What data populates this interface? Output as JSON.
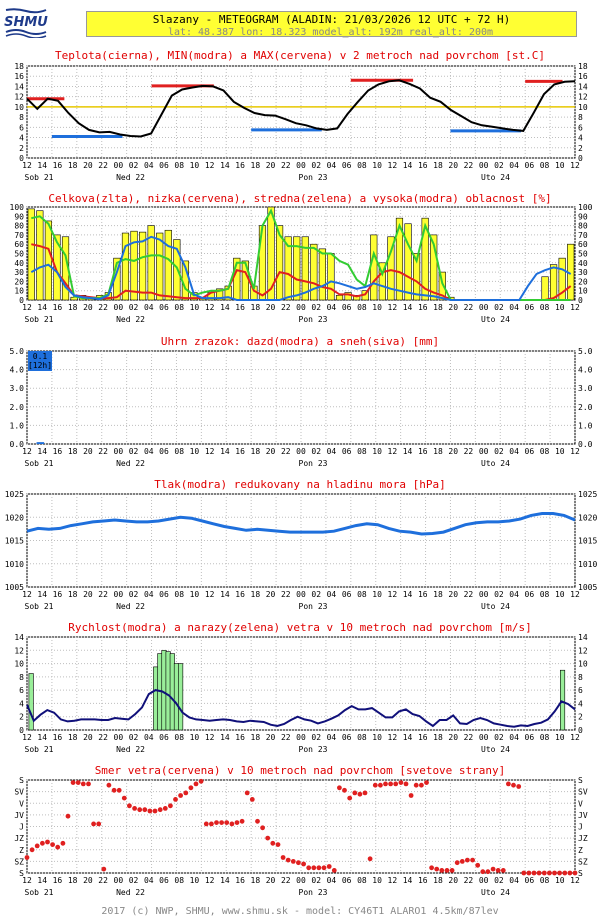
{
  "header": {
    "logo_text": "SHMU",
    "title": "Slazany - METEOGRAM (ALADIN: 21/03/2026 12 UTC + 72 H)",
    "subtitle": "lat: 48.387   lon: 18.323   model_alt: 192m   real_alt: 200m"
  },
  "time_axis": {
    "hour_labels": [
      "12",
      "14",
      "16",
      "18",
      "20",
      "22",
      "00",
      "02",
      "04",
      "06",
      "08",
      "10",
      "12",
      "14",
      "16",
      "18",
      "20",
      "22",
      "00",
      "02",
      "04",
      "06",
      "08",
      "10",
      "12",
      "14",
      "16",
      "18",
      "20",
      "22",
      "00",
      "02",
      "04",
      "06",
      "08",
      "10",
      "12"
    ],
    "day_labels": [
      "Sob 21",
      "Ned 22",
      "Pon 23",
      "Uto 24"
    ]
  },
  "colors": {
    "temp": "#000000",
    "min": "#1e6fdc",
    "max": "#e02020",
    "ref": "#e8c800",
    "cloud_total": "#ffff33",
    "cloud_low": "#e02020",
    "cloud_mid": "#33cc33",
    "cloud_high": "#1e6fdc",
    "precip": "#1e6fdc",
    "pressure": "#1e6fdc",
    "wind": "#10107a",
    "gust": "#99ee99",
    "dir": "#e02020"
  },
  "footer": "2017 (c) NWP, SHMU, www.shmu.sk - model: CY46T1 ALARO1 4.5km/87lev",
  "chart_data": [
    {
      "type": "line",
      "title": "Teplota(cierna), MIN(modra) a MAX(cervena) v 2 metroch nad povrchom [st.C]",
      "ylim": [
        0,
        18
      ],
      "yticks": [
        0,
        2,
        4,
        6,
        8,
        10,
        12,
        14,
        16,
        18
      ],
      "reference_line": 10,
      "series": [
        {
          "name": "Teplota",
          "values": [
            11.6,
            9.6,
            11.6,
            11.2,
            8.8,
            6.8,
            5.5,
            5,
            5.1,
            4.6,
            4.3,
            4.2,
            4.8,
            8.5,
            12.2,
            13.4,
            13.8,
            14.1,
            14,
            13.2,
            11,
            9.8,
            8.8,
            8.4,
            8.3,
            7.6,
            6.8,
            6.4,
            5.8,
            5.5,
            5.8,
            8.6,
            11,
            13.2,
            14.4,
            15,
            15.2,
            14.5,
            13.6,
            11.8,
            11,
            9.4,
            8.2,
            7,
            6.4,
            6.1,
            5.8,
            5.5,
            5.3,
            8.8,
            12.5,
            14.4,
            14.9,
            15
          ]
        }
      ],
      "segments_min": [
        {
          "from_h": 6,
          "to_h": 23,
          "value": 4.2
        },
        {
          "from_h": 54,
          "to_h": 71,
          "value": 5.5
        },
        {
          "from_h": 102,
          "to_h": 119,
          "value": 5.3
        }
      ],
      "segments_max": [
        {
          "from_h": 0,
          "to_h": 9,
          "value": 11.6
        },
        {
          "from_h": 30,
          "to_h": 45,
          "value": 14.1
        },
        {
          "from_h": 78,
          "to_h": 93,
          "value": 15.2
        },
        {
          "from_h": 120,
          "to_h": 129,
          "value": 15
        }
      ]
    },
    {
      "type": "bar",
      "title": "Celkova(zlta), nizka(cervena), stredna(zelena) a vysoka(modra) oblacnost [%]",
      "ylim": [
        0,
        100
      ],
      "yticks": [
        0,
        10,
        20,
        30,
        40,
        50,
        60,
        70,
        80,
        90,
        100
      ],
      "series": [
        {
          "name": "Celkova",
          "values": [
            98,
            96,
            85,
            70,
            68,
            3,
            5,
            2,
            5,
            8,
            45,
            72,
            74,
            73,
            80,
            72,
            75,
            65,
            42,
            8,
            3,
            8,
            12,
            15,
            45,
            42,
            15,
            80,
            100,
            80,
            68,
            68,
            68,
            60,
            55,
            50,
            5,
            8,
            5,
            10,
            70,
            40,
            68,
            88,
            82,
            50,
            88,
            70,
            30,
            3,
            0,
            0,
            0,
            0,
            0,
            0,
            0,
            0,
            0,
            0,
            25,
            38,
            45,
            60
          ]
        },
        {
          "name": "nizka",
          "values": [
            60,
            58,
            55,
            30,
            18,
            5,
            4,
            3,
            2,
            2,
            3,
            10,
            9,
            8,
            8,
            5,
            4,
            3,
            2,
            2,
            2,
            8,
            10,
            12,
            32,
            30,
            10,
            5,
            12,
            30,
            28,
            22,
            20,
            18,
            14,
            12,
            6,
            6,
            4,
            6,
            20,
            30,
            32,
            30,
            25,
            20,
            12,
            8,
            5,
            0,
            0,
            0,
            0,
            0,
            0,
            0,
            0,
            0,
            0,
            0,
            0,
            2,
            8,
            15
          ]
        },
        {
          "name": "stredna",
          "values": [
            88,
            90,
            82,
            62,
            48,
            4,
            2,
            2,
            2,
            6,
            40,
            44,
            42,
            46,
            48,
            48,
            44,
            35,
            12,
            5,
            8,
            10,
            10,
            12,
            40,
            40,
            12,
            80,
            96,
            70,
            58,
            58,
            56,
            56,
            50,
            50,
            42,
            38,
            22,
            15,
            50,
            28,
            52,
            80,
            60,
            42,
            80,
            60,
            18,
            0,
            0,
            0,
            0,
            0,
            0,
            0,
            0,
            0,
            0,
            0,
            0,
            0,
            0,
            0
          ]
        },
        {
          "name": "vysoka",
          "values": [
            30,
            35,
            38,
            30,
            14,
            5,
            3,
            2,
            1,
            5,
            30,
            58,
            62,
            63,
            68,
            65,
            58,
            55,
            35,
            6,
            2,
            2,
            2,
            3,
            0,
            0,
            0,
            0,
            0,
            0,
            3,
            5,
            8,
            12,
            15,
            20,
            18,
            15,
            12,
            14,
            18,
            15,
            12,
            10,
            8,
            6,
            5,
            4,
            2,
            0,
            0,
            0,
            0,
            0,
            0,
            0,
            0,
            0,
            15,
            28,
            32,
            35,
            33,
            28
          ]
        }
      ]
    },
    {
      "type": "bar",
      "title": "Uhrn zrazok: dazd(modra) a sneh(siva) [mm]",
      "ylim": [
        0,
        5
      ],
      "yticks": [
        0,
        1,
        2,
        3,
        4,
        5
      ],
      "ytick_labels": [
        "0.0",
        "1.0",
        "2.0",
        "3.0",
        "4.0",
        "5.0"
      ],
      "box_value": "0.1",
      "box_label": "[12h]",
      "series": [
        {
          "name": "dazd",
          "values": [
            0,
            0.1,
            0,
            0,
            0,
            0,
            0,
            0,
            0,
            0,
            0,
            0,
            0,
            0,
            0,
            0,
            0,
            0,
            0,
            0,
            0,
            0,
            0,
            0,
            0,
            0,
            0,
            0,
            0,
            0,
            0,
            0,
            0,
            0,
            0,
            0,
            0,
            0,
            0,
            0,
            0,
            0,
            0,
            0,
            0,
            0,
            0,
            0,
            0,
            0,
            0,
            0,
            0,
            0,
            0,
            0,
            0,
            0,
            0,
            0,
            0,
            0,
            0,
            0
          ]
        }
      ]
    },
    {
      "type": "line",
      "title": "Tlak(modra) redukovany na hladinu mora [hPa]",
      "ylim": [
        1005,
        1025
      ],
      "yticks": [
        1005,
        1010,
        1015,
        1020,
        1025
      ],
      "series": [
        {
          "name": "Tlak",
          "values": [
            1017,
            1017.6,
            1017.4,
            1017.6,
            1018.2,
            1018.6,
            1019,
            1019.2,
            1019.4,
            1019.2,
            1019,
            1019,
            1019.2,
            1019.6,
            1020,
            1019.8,
            1019.2,
            1018.6,
            1018,
            1017.6,
            1017.2,
            1017.4,
            1017.2,
            1017,
            1016.8,
            1016.8,
            1016.8,
            1016.8,
            1017,
            1017.6,
            1018.2,
            1018.6,
            1018.4,
            1017.6,
            1017,
            1016.8,
            1016.4,
            1016.5,
            1016.8,
            1017.6,
            1018.4,
            1018.8,
            1019,
            1019,
            1019.2,
            1019.6,
            1020.4,
            1020.8,
            1020.8,
            1020.4,
            1019.4
          ]
        }
      ]
    },
    {
      "type": "bar",
      "title": "Rychlost(modra) a narazy(zelena) vetra v 10 metroch nad povrchom [m/s]",
      "ylim": [
        0,
        14
      ],
      "yticks": [
        0,
        2,
        4,
        6,
        8,
        10,
        12,
        14
      ],
      "series": [
        {
          "name": "Rychlost",
          "values": [
            3.8,
            1.4,
            2.3,
            3,
            2.6,
            1.6,
            1.3,
            1.4,
            1.6,
            1.6,
            1.6,
            1.5,
            1.5,
            1.8,
            1.7,
            1.6,
            2.4,
            3.4,
            5.4,
            6,
            5.8,
            5.2,
            4.1,
            2.6,
            1.9,
            1.6,
            1.5,
            1.4,
            1.5,
            1.6,
            1.5,
            1.3,
            1.2,
            1.4,
            1.3,
            1.2,
            0.8,
            0.6,
            0.9,
            1.5,
            2,
            1.6,
            1.4,
            1,
            1.3,
            1.7,
            2.2,
            3,
            3.6,
            3.1,
            3.1,
            3.3,
            2.6,
            1.9,
            1.9,
            2.8,
            3.1,
            2.4,
            2.1,
            1.3,
            0.6,
            1.5,
            1.5,
            2.2,
            1,
            0.9,
            1.5,
            1.8,
            1.5,
            1,
            0.8,
            0.6,
            0.5,
            0.7,
            0.6,
            0.9,
            1.1,
            1.6,
            2.8,
            4.3,
            3.9,
            3.1
          ]
        },
        {
          "name": "narazy",
          "values": [
            0,
            8.5,
            0,
            0,
            0,
            0,
            0,
            0,
            0,
            0,
            0,
            0,
            0,
            0,
            0,
            0,
            0,
            0,
            0,
            0,
            0,
            0,
            0,
            0,
            0,
            0,
            0,
            0,
            0,
            0,
            0,
            0,
            0,
            0,
            0,
            0,
            0,
            0,
            0,
            0,
            0,
            0,
            0,
            0,
            0,
            0,
            0,
            0,
            0,
            0,
            0,
            0,
            0,
            0,
            0,
            0,
            0,
            0,
            0,
            0,
            0,
            0,
            0,
            0,
            0,
            0,
            0,
            0,
            0,
            0,
            0,
            0,
            0,
            0,
            0,
            0,
            0,
            0,
            0,
            0,
            0,
            0,
            0,
            0,
            0,
            0,
            0,
            0,
            0,
            0,
            0,
            0,
            0,
            0,
            0,
            0,
            0,
            0,
            0,
            0,
            0,
            0,
            0,
            0,
            0,
            0,
            0,
            0,
            0,
            0,
            0,
            0,
            0,
            0,
            0,
            0,
            0,
            0,
            0,
            0,
            0,
            0,
            0,
            0,
            0,
            0,
            0,
            0,
            0,
            0,
            0,
            0,
            0,
            0,
            0
          ]
        },
        {
          "name": "narazy_bars",
          "values": [
            {
              "h": 1,
              "v": 8.5
            },
            {
              "h": 31,
              "v": 9.5
            },
            {
              "h": 32,
              "v": 11.5
            },
            {
              "h": 33,
              "v": 12
            },
            {
              "h": 34,
              "v": 11.8
            },
            {
              "h": 35,
              "v": 11.5
            },
            {
              "h": 36,
              "v": 10
            },
            {
              "h": 37,
              "v": 10
            },
            {
              "h": 129,
              "v": 9
            }
          ]
        }
      ]
    },
    {
      "type": "scatter",
      "title": "Smer vetra(cervena) v 10 metroch nad povrchom [svetove strany]",
      "yticks": [
        "S",
        "SZ",
        "Z",
        "JZ",
        "J",
        "JV",
        "V",
        "SV",
        "S"
      ],
      "series": [
        {
          "name": "Smer",
          "values": [
            60,
            90,
            105,
            115,
            120,
            110,
            100,
            115,
            220,
            350,
            350,
            345,
            345,
            190,
            190,
            15,
            340,
            320,
            320,
            290,
            260,
            250,
            245,
            245,
            240,
            240,
            245,
            250,
            260,
            285,
            300,
            310,
            330,
            345,
            355,
            190,
            190,
            195,
            195,
            195,
            190,
            195,
            200,
            310,
            285,
            200,
            175,
            135,
            115,
            110,
            60,
            50,
            45,
            40,
            35,
            20,
            20,
            20,
            20,
            25,
            10,
            330,
            320,
            290,
            310,
            305,
            310,
            55,
            340,
            340,
            345,
            345,
            345,
            350,
            345,
            300,
            340,
            340,
            350,
            20,
            15,
            10,
            10,
            10,
            40,
            45,
            50,
            50,
            30,
            5,
            5,
            15,
            10,
            10,
            345,
            340,
            335,
            0,
            0,
            0,
            0,
            0,
            0,
            0,
            0,
            0,
            0,
            0
          ]
        }
      ]
    }
  ]
}
